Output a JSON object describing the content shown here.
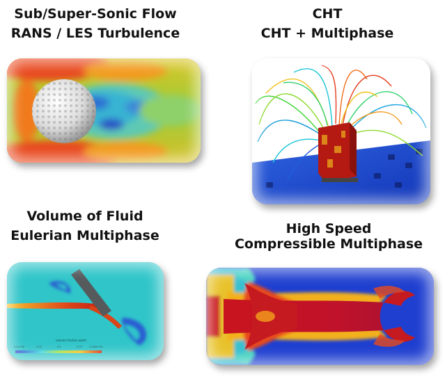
{
  "panels": [
    {
      "line1": "Sub/Super-Sonic Flow",
      "line2": "RANS / LES Turbulence"
    },
    {
      "line1": "CHT",
      "line2": "CHT + Multiphase"
    },
    {
      "line1": "Volume of Fluid",
      "line2": "Eulerian Multiphase"
    },
    {
      "line1": "High Speed",
      "line2": "Compressible Multiphase"
    }
  ],
  "colorbar": {
    "title": "volume fraction water",
    "ticks": [
      "0.0e+00",
      "0.25",
      "0.5",
      "0.75",
      "1.000e+00"
    ]
  }
}
